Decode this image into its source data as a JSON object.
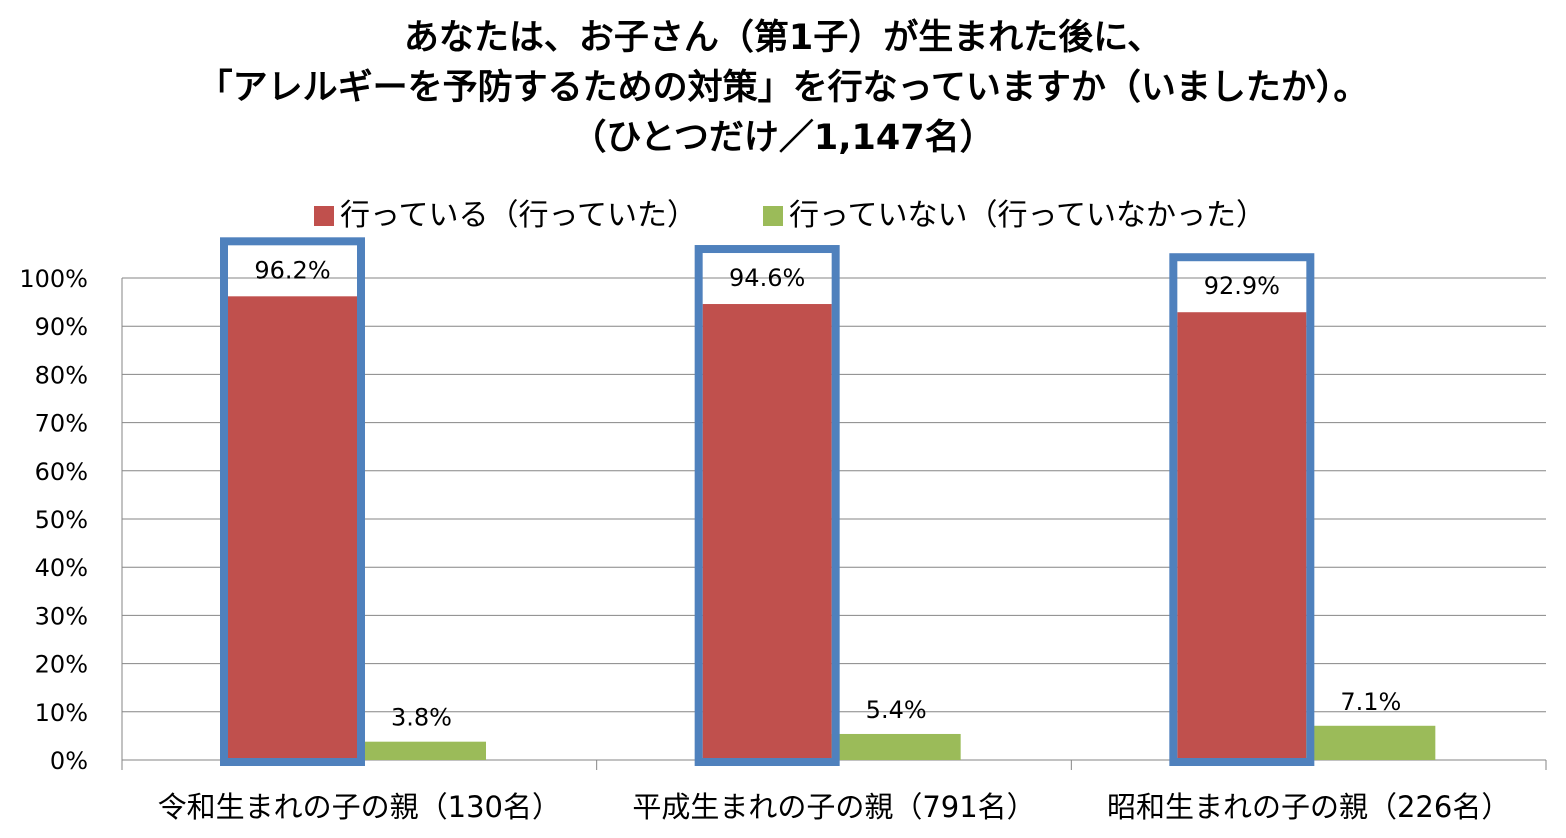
{
  "title_lines": [
    "あなたは、お子さん（第1子）が生まれた後に、",
    "「アレルギーを予防するための対策」を行なっていますか（いましたか）。",
    "（ひとつだけ／1,147名）"
  ],
  "chart_data": {
    "type": "bar",
    "categories": [
      "令和生まれの子の親（130名）",
      "平成生まれの子の親（791名）",
      "昭和生まれの子の親（226名）"
    ],
    "series": [
      {
        "name": "行っている（行っていた）",
        "values": [
          96.2,
          94.6,
          92.9
        ],
        "labels": [
          "96.2%",
          "94.6%",
          "92.9%"
        ],
        "color": "#c0504d"
      },
      {
        "name": "行っていない（行っていなかった）",
        "values": [
          3.8,
          5.4,
          7.1
        ],
        "labels": [
          "3.8%",
          "5.4%",
          "7.1%"
        ],
        "color": "#9bbb59"
      }
    ],
    "ylim": [
      0,
      100
    ],
    "yticks": [
      "0%",
      "10%",
      "20%",
      "30%",
      "40%",
      "50%",
      "60%",
      "70%",
      "80%",
      "90%",
      "100%"
    ],
    "grid": true,
    "legend_position": "top",
    "highlight_color": "#4f81bd"
  }
}
